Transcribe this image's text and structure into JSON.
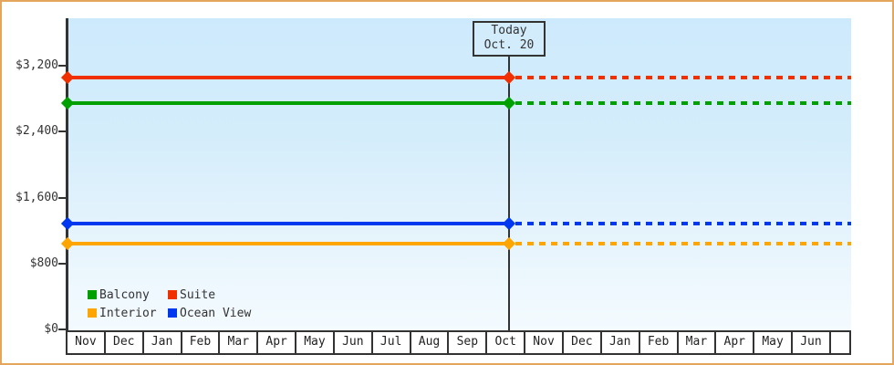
{
  "chart_data": {
    "type": "line",
    "title": "",
    "xlabel": "",
    "ylabel": "",
    "x_months": [
      "Nov",
      "Dec",
      "Jan",
      "Feb",
      "Mar",
      "Apr",
      "May",
      "Jun",
      "Jul",
      "Aug",
      "Sep",
      "Oct",
      "Nov",
      "Dec",
      "Jan",
      "Feb",
      "Mar",
      "Apr",
      "May",
      "Jun"
    ],
    "y_ticks": [
      {
        "label": "$0",
        "value": 0
      },
      {
        "label": "$800",
        "value": 800
      },
      {
        "label": "$1,600",
        "value": 1600
      },
      {
        "label": "$2,400",
        "value": 2400
      },
      {
        "label": "$3,200",
        "value": 3200
      }
    ],
    "ylim": [
      0,
      3760
    ],
    "grid": false,
    "series": [
      {
        "name": "Suite",
        "color": "#f13000",
        "value": 3060,
        "style": "solid-before-today-dashed-after"
      },
      {
        "name": "Balcony",
        "color": "#00a000",
        "value": 2750,
        "style": "solid-before-today-dashed-after"
      },
      {
        "name": "Ocean View",
        "color": "#0038f0",
        "value": 1280,
        "style": "solid-before-today-dashed-after"
      },
      {
        "name": "Interior",
        "color": "#ffa500",
        "value": 1040,
        "style": "solid-before-today-dashed-after"
      }
    ],
    "today": {
      "label_line1": "Today",
      "label_line2": "Oct. 20",
      "month_index": 11,
      "day": 20
    },
    "legend": [
      {
        "label": "Balcony",
        "color": "#00a000"
      },
      {
        "label": "Suite",
        "color": "#f13000"
      },
      {
        "label": "Interior",
        "color": "#ffa500"
      },
      {
        "label": "Ocean View",
        "color": "#0038f0"
      }
    ],
    "legend_position": "bottom-left"
  },
  "colors": {
    "frame_border": "#e4a65d",
    "axis": "#333333",
    "today_line": "#333333",
    "today_box_fill": "#d2ecfb",
    "plot_bg_top": "#cdeafc",
    "plot_bg_bottom": "#f4fbff"
  }
}
